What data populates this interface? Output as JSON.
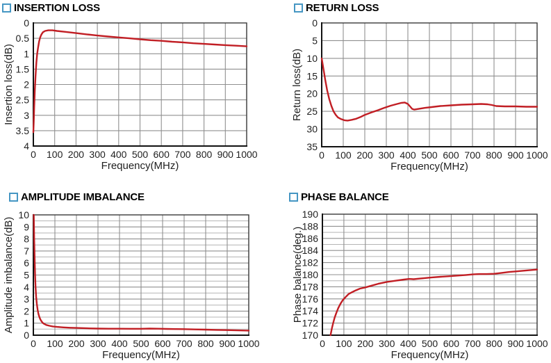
{
  "colors": {
    "curve": "#c11e24",
    "grid_major": "#8f8f8f",
    "grid_minor": "#b4b4b4",
    "frame": "#3a3a3a",
    "axis": "#111111",
    "title_marker": "#4596c3",
    "text": "#1f1f1f"
  },
  "chart_data": [
    {
      "type": "line",
      "title": "INSERTION LOSS",
      "xlabel": "Frequency(MHz)",
      "ylabel": "Insertion loss(dB)",
      "xlim": [
        0,
        1000
      ],
      "ylim": [
        0,
        4
      ],
      "y_inverted": true,
      "grid": true,
      "legend": "none",
      "xticks": [
        0,
        100,
        200,
        300,
        400,
        500,
        600,
        700,
        800,
        900,
        1000
      ],
      "xtick_labels": [
        "0",
        "100",
        "200",
        "300",
        "400",
        "500",
        "600",
        "700",
        "800",
        "900",
        "1000"
      ],
      "yticks": [
        0,
        0.5,
        1,
        1.5,
        2,
        2.5,
        3,
        3.5,
        4
      ],
      "ytick_labels": [
        "0",
        "0.5",
        "1",
        "1.5",
        "2",
        "2.5",
        "3",
        "3.5",
        "4"
      ],
      "y_minor_ticks": [],
      "series": [
        {
          "name": "insertion loss",
          "points": [
            [
              0,
              3.55
            ],
            [
              2,
              3.2
            ],
            [
              4,
              2.75
            ],
            [
              7,
              2.2
            ],
            [
              10,
              1.75
            ],
            [
              14,
              1.3
            ],
            [
              18,
              1.0
            ],
            [
              22,
              0.8
            ],
            [
              27,
              0.6
            ],
            [
              32,
              0.47
            ],
            [
              38,
              0.37
            ],
            [
              45,
              0.3
            ],
            [
              55,
              0.26
            ],
            [
              70,
              0.24
            ],
            [
              90,
              0.24
            ],
            [
              110,
              0.26
            ],
            [
              150,
              0.29
            ],
            [
              200,
              0.33
            ],
            [
              250,
              0.37
            ],
            [
              300,
              0.41
            ],
            [
              350,
              0.44
            ],
            [
              400,
              0.47
            ],
            [
              450,
              0.5
            ],
            [
              500,
              0.53
            ],
            [
              550,
              0.56
            ],
            [
              600,
              0.58
            ],
            [
              650,
              0.61
            ],
            [
              700,
              0.63
            ],
            [
              750,
              0.66
            ],
            [
              800,
              0.68
            ],
            [
              850,
              0.7
            ],
            [
              900,
              0.72
            ],
            [
              950,
              0.74
            ],
            [
              1000,
              0.76
            ]
          ]
        }
      ]
    },
    {
      "type": "line",
      "title": "RETURN LOSS",
      "xlabel": "Frequency(MHz)",
      "ylabel": "Return loss(dB)",
      "xlim": [
        0,
        1000
      ],
      "ylim": [
        0,
        35
      ],
      "y_inverted": true,
      "grid": true,
      "legend": "none",
      "xticks": [
        0,
        100,
        200,
        300,
        400,
        500,
        600,
        700,
        800,
        900,
        1000
      ],
      "xtick_labels": [
        "0",
        "100",
        "200",
        "300",
        "400",
        "500",
        "600",
        "700",
        "800",
        "900",
        "1000"
      ],
      "yticks": [
        0,
        5,
        10,
        15,
        20,
        25,
        30,
        35
      ],
      "ytick_labels": [
        "0",
        "5",
        "10",
        "15",
        "20",
        "25",
        "30",
        "35"
      ],
      "y_minor_ticks": [],
      "series": [
        {
          "name": "return loss",
          "points": [
            [
              0,
              10
            ],
            [
              8,
              13
            ],
            [
              16,
              16
            ],
            [
              25,
              19
            ],
            [
              35,
              21.5
            ],
            [
              45,
              23.5
            ],
            [
              55,
              25
            ],
            [
              65,
              26
            ],
            [
              75,
              26.7
            ],
            [
              90,
              27.2
            ],
            [
              105,
              27.5
            ],
            [
              120,
              27.6
            ],
            [
              140,
              27.4
            ],
            [
              160,
              27.1
            ],
            [
              180,
              26.6
            ],
            [
              200,
              26
            ],
            [
              230,
              25.3
            ],
            [
              260,
              24.7
            ],
            [
              290,
              24
            ],
            [
              320,
              23.4
            ],
            [
              350,
              22.9
            ],
            [
              370,
              22.6
            ],
            [
              385,
              22.5
            ],
            [
              400,
              22.9
            ],
            [
              410,
              23.6
            ],
            [
              420,
              24.3
            ],
            [
              430,
              24.5
            ],
            [
              450,
              24.3
            ],
            [
              480,
              24
            ],
            [
              510,
              23.8
            ],
            [
              550,
              23.5
            ],
            [
              600,
              23.3
            ],
            [
              650,
              23.1
            ],
            [
              700,
              23
            ],
            [
              740,
              22.9
            ],
            [
              770,
              23
            ],
            [
              790,
              23.2
            ],
            [
              810,
              23.5
            ],
            [
              850,
              23.6
            ],
            [
              900,
              23.6
            ],
            [
              950,
              23.7
            ],
            [
              1000,
              23.7
            ]
          ]
        }
      ]
    },
    {
      "type": "line",
      "title": "AMPLITUDE IMBALANCE",
      "xlabel": "Frequency(MHz)",
      "ylabel": "Amplitude imbalance(dB)",
      "xlim": [
        0,
        1000
      ],
      "ylim": [
        0,
        10
      ],
      "y_inverted": false,
      "grid": true,
      "legend": "none",
      "xticks": [
        0,
        100,
        200,
        300,
        400,
        500,
        600,
        700,
        800,
        900,
        1000
      ],
      "xtick_labels": [
        "0",
        "100",
        "200",
        "300",
        "400",
        "500",
        "600",
        "700",
        "800",
        "900",
        "1000"
      ],
      "yticks": [
        0,
        1,
        2,
        3,
        4,
        5,
        6,
        7,
        8,
        9,
        10
      ],
      "ytick_labels": [
        "0",
        "1",
        "2",
        "3",
        "4",
        "5",
        "6",
        "7",
        "8",
        "9",
        "10"
      ],
      "y_minor_ticks": [
        0.5,
        1.5,
        2.5,
        3.5,
        4.5,
        5.5,
        6.5,
        7.5,
        8.5,
        9.5
      ],
      "series": [
        {
          "name": "amplitude imbalance",
          "points": [
            [
              2,
              10
            ],
            [
              4,
              8
            ],
            [
              6,
              6.3
            ],
            [
              8,
              5
            ],
            [
              10,
              4.1
            ],
            [
              13,
              3.2
            ],
            [
              16,
              2.6
            ],
            [
              20,
              2.1
            ],
            [
              24,
              1.75
            ],
            [
              28,
              1.5
            ],
            [
              33,
              1.3
            ],
            [
              38,
              1.15
            ],
            [
              44,
              1.02
            ],
            [
              50,
              0.94
            ],
            [
              60,
              0.85
            ],
            [
              75,
              0.78
            ],
            [
              90,
              0.73
            ],
            [
              110,
              0.69
            ],
            [
              140,
              0.65
            ],
            [
              170,
              0.62
            ],
            [
              200,
              0.6
            ],
            [
              250,
              0.57
            ],
            [
              300,
              0.55
            ],
            [
              350,
              0.54
            ],
            [
              400,
              0.54
            ],
            [
              450,
              0.53
            ],
            [
              500,
              0.53
            ],
            [
              540,
              0.55
            ],
            [
              580,
              0.54
            ],
            [
              620,
              0.52
            ],
            [
              660,
              0.51
            ],
            [
              700,
              0.5
            ],
            [
              750,
              0.48
            ],
            [
              800,
              0.46
            ],
            [
              850,
              0.44
            ],
            [
              900,
              0.42
            ],
            [
              950,
              0.4
            ],
            [
              1000,
              0.38
            ]
          ]
        }
      ]
    },
    {
      "type": "line",
      "title": "PHASE BALANCE",
      "xlabel": "Frequency(MHz)",
      "ylabel": "Phase balance(deg.)",
      "xlim": [
        0,
        1000
      ],
      "ylim": [
        170,
        190
      ],
      "y_inverted": false,
      "grid": true,
      "legend": "none",
      "xticks": [
        0,
        100,
        200,
        300,
        400,
        500,
        600,
        700,
        800,
        900,
        1000
      ],
      "xtick_labels": [
        "0",
        "100",
        "200",
        "300",
        "400",
        "500",
        "600",
        "700",
        "800",
        "900",
        "1000"
      ],
      "yticks": [
        170,
        172,
        174,
        176,
        178,
        180,
        182,
        184,
        186,
        188,
        190
      ],
      "ytick_labels": [
        "170",
        "172",
        "174",
        "176",
        "178",
        "180",
        "182",
        "184",
        "186",
        "188",
        "190"
      ],
      "y_minor_ticks": [
        171,
        173,
        175,
        177,
        179,
        181,
        183,
        185,
        187,
        189
      ],
      "series": [
        {
          "name": "phase balance",
          "points": [
            [
              38,
              170
            ],
            [
              44,
              171.1
            ],
            [
              50,
              172
            ],
            [
              57,
              172.9
            ],
            [
              65,
              173.7
            ],
            [
              74,
              174.5
            ],
            [
              84,
              175.2
            ],
            [
              95,
              175.8
            ],
            [
              108,
              176.3
            ],
            [
              122,
              176.8
            ],
            [
              138,
              177.1
            ],
            [
              155,
              177.4
            ],
            [
              175,
              177.7
            ],
            [
              200,
              177.9
            ],
            [
              230,
              178.2
            ],
            [
              260,
              178.5
            ],
            [
              300,
              178.8
            ],
            [
              340,
              179
            ],
            [
              380,
              179.2
            ],
            [
              405,
              179.3
            ],
            [
              425,
              179.25
            ],
            [
              450,
              179.35
            ],
            [
              480,
              179.45
            ],
            [
              510,
              179.55
            ],
            [
              550,
              179.65
            ],
            [
              590,
              179.75
            ],
            [
              630,
              179.85
            ],
            [
              670,
              179.95
            ],
            [
              700,
              180.05
            ],
            [
              730,
              180.1
            ],
            [
              765,
              180.1
            ],
            [
              800,
              180.15
            ],
            [
              835,
              180.3
            ],
            [
              870,
              180.45
            ],
            [
              905,
              180.55
            ],
            [
              950,
              180.7
            ],
            [
              1000,
              180.85
            ]
          ]
        }
      ]
    }
  ]
}
